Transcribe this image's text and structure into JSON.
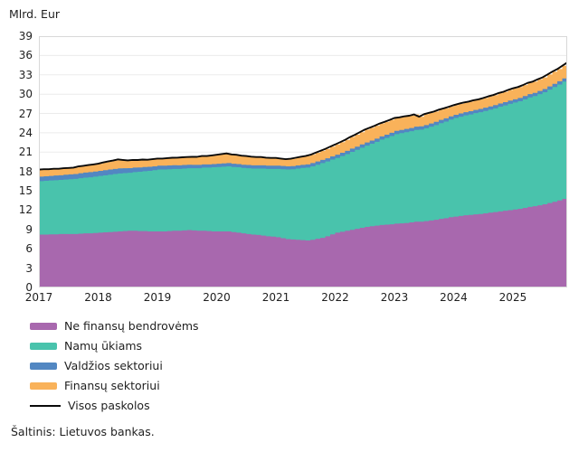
{
  "header": {
    "unit_label": "Mlrd. Eur"
  },
  "source_text": "Šaltinis: Lietuvos bankas.",
  "colors": {
    "purple": "#a868ae",
    "teal": "#49c3ac",
    "blue": "#5287c2",
    "orange": "#f9b25a",
    "line": "#0a0a0a",
    "grid": "#ebebeb",
    "border": "#d8d8d8",
    "text": "#1f1f1f"
  },
  "chart_data": {
    "type": "area",
    "stacked": true,
    "frequency": "monthly",
    "title": "",
    "ylabel": "Mlrd. Eur",
    "xlabel": "",
    "ylim": [
      0,
      39
    ],
    "y_ticks": [
      0,
      3,
      6,
      9,
      12,
      15,
      18,
      21,
      24,
      27,
      30,
      33,
      36,
      39
    ],
    "x_tick_labels": [
      "2017",
      "2018",
      "2019",
      "2020",
      "2021",
      "2022",
      "2023",
      "2024",
      "2025"
    ],
    "x_range": "2017-01 to 2025-12",
    "grid": "horizontal",
    "legend_position": "bottom-left",
    "series": [
      {
        "name": "Ne finansų bendrovėms",
        "color_key": "purple",
        "values": [
          8.2,
          8.2,
          8.25,
          8.25,
          8.3,
          8.3,
          8.3,
          8.3,
          8.35,
          8.4,
          8.4,
          8.45,
          8.5,
          8.55,
          8.6,
          8.65,
          8.7,
          8.75,
          8.8,
          8.8,
          8.75,
          8.75,
          8.7,
          8.7,
          8.7,
          8.7,
          8.75,
          8.8,
          8.8,
          8.85,
          8.9,
          8.85,
          8.8,
          8.8,
          8.75,
          8.7,
          8.7,
          8.7,
          8.7,
          8.6,
          8.5,
          8.4,
          8.3,
          8.2,
          8.15,
          8.05,
          7.95,
          7.9,
          7.8,
          7.65,
          7.5,
          7.45,
          7.4,
          7.35,
          7.3,
          7.4,
          7.55,
          7.7,
          7.95,
          8.25,
          8.5,
          8.65,
          8.8,
          8.95,
          9.1,
          9.25,
          9.4,
          9.5,
          9.6,
          9.7,
          9.75,
          9.8,
          9.9,
          9.95,
          10.0,
          10.1,
          10.2,
          10.2,
          10.3,
          10.4,
          10.5,
          10.65,
          10.75,
          10.9,
          11.0,
          11.1,
          11.2,
          11.25,
          11.35,
          11.4,
          11.5,
          11.6,
          11.7,
          11.8,
          11.9,
          12.0,
          12.1,
          12.2,
          12.35,
          12.5,
          12.6,
          12.75,
          12.9,
          13.1,
          13.3,
          13.5,
          13.75,
          14.0
        ]
      },
      {
        "name": "Namų ūkiams",
        "color_key": "teal",
        "values": [
          8.3,
          8.35,
          8.35,
          8.4,
          8.4,
          8.45,
          8.5,
          8.55,
          8.6,
          8.65,
          8.7,
          8.75,
          8.8,
          8.85,
          8.9,
          8.95,
          9.0,
          9.0,
          9.0,
          9.1,
          9.2,
          9.3,
          9.4,
          9.5,
          9.6,
          9.6,
          9.6,
          9.6,
          9.6,
          9.6,
          9.6,
          9.65,
          9.7,
          9.8,
          9.85,
          9.95,
          10.0,
          10.05,
          10.1,
          10.1,
          10.15,
          10.15,
          10.2,
          10.25,
          10.3,
          10.4,
          10.45,
          10.5,
          10.6,
          10.7,
          10.8,
          10.9,
          11.05,
          11.2,
          11.3,
          11.4,
          11.5,
          11.6,
          11.6,
          11.6,
          11.6,
          11.75,
          11.9,
          12.1,
          12.25,
          12.45,
          12.6,
          12.8,
          13.0,
          13.25,
          13.45,
          13.7,
          13.9,
          14.0,
          14.1,
          14.15,
          14.25,
          14.3,
          14.4,
          14.55,
          14.7,
          14.85,
          15.0,
          15.15,
          15.3,
          15.4,
          15.5,
          15.6,
          15.7,
          15.8,
          15.9,
          16.0,
          16.1,
          16.25,
          16.35,
          16.5,
          16.6,
          16.7,
          16.85,
          17.0,
          17.1,
          17.25,
          17.4,
          17.6,
          17.8,
          18.0,
          18.2,
          18.4
        ]
      },
      {
        "name": "Valdžios sektoriui",
        "color_key": "blue",
        "values": [
          0.7,
          0.7,
          0.7,
          0.72,
          0.72,
          0.75,
          0.75,
          0.75,
          0.78,
          0.78,
          0.8,
          0.8,
          0.8,
          0.8,
          0.8,
          0.8,
          0.78,
          0.75,
          0.72,
          0.7,
          0.68,
          0.65,
          0.62,
          0.6,
          0.6,
          0.6,
          0.58,
          0.58,
          0.55,
          0.55,
          0.55,
          0.52,
          0.52,
          0.5,
          0.5,
          0.5,
          0.5,
          0.5,
          0.5,
          0.5,
          0.5,
          0.5,
          0.5,
          0.5,
          0.5,
          0.5,
          0.5,
          0.5,
          0.5,
          0.5,
          0.5,
          0.48,
          0.48,
          0.48,
          0.5,
          0.5,
          0.5,
          0.5,
          0.5,
          0.5,
          0.5,
          0.5,
          0.5,
          0.5,
          0.5,
          0.5,
          0.5,
          0.5,
          0.5,
          0.5,
          0.5,
          0.5,
          0.5,
          0.5,
          0.5,
          0.5,
          0.5,
          0.5,
          0.5,
          0.5,
          0.5,
          0.5,
          0.5,
          0.5,
          0.5,
          0.5,
          0.5,
          0.5,
          0.5,
          0.5,
          0.5,
          0.5,
          0.5,
          0.5,
          0.5,
          0.5,
          0.5,
          0.5,
          0.5,
          0.5,
          0.5,
          0.5,
          0.5,
          0.5,
          0.5,
          0.5,
          0.5,
          0.5
        ]
      },
      {
        "name": "Finansų sektoriui",
        "color_key": "orange",
        "values": [
          1.1,
          1.1,
          1.05,
          1.05,
          1.0,
          1.0,
          1.0,
          1.0,
          1.05,
          1.05,
          1.1,
          1.1,
          1.1,
          1.2,
          1.25,
          1.3,
          1.4,
          1.3,
          1.2,
          1.2,
          1.15,
          1.15,
          1.1,
          1.1,
          1.1,
          1.1,
          1.15,
          1.15,
          1.2,
          1.2,
          1.2,
          1.25,
          1.25,
          1.3,
          1.3,
          1.35,
          1.4,
          1.45,
          1.5,
          1.45,
          1.45,
          1.4,
          1.4,
          1.35,
          1.3,
          1.3,
          1.25,
          1.2,
          1.2,
          1.15,
          1.1,
          1.15,
          1.2,
          1.25,
          1.3,
          1.3,
          1.35,
          1.4,
          1.45,
          1.5,
          1.6,
          1.65,
          1.7,
          1.8,
          1.85,
          1.9,
          2.0,
          2.0,
          2.0,
          2.0,
          2.0,
          2.0,
          2.0,
          1.95,
          1.95,
          1.9,
          1.9,
          1.5,
          1.7,
          1.65,
          1.6,
          1.6,
          1.55,
          1.5,
          1.5,
          1.5,
          1.5,
          1.5,
          1.5,
          1.5,
          1.5,
          1.55,
          1.55,
          1.6,
          1.6,
          1.65,
          1.7,
          1.7,
          1.7,
          1.75,
          1.75,
          1.8,
          1.8,
          1.85,
          1.9,
          1.9,
          1.95,
          2.0
        ]
      }
    ],
    "total_series": {
      "name": "Visos paskolos",
      "type": "line",
      "color_key": "line",
      "derived": "sum of stacked series"
    }
  },
  "legend": {
    "items": [
      {
        "swatch": "purple",
        "shape": "area"
      },
      {
        "swatch": "teal",
        "shape": "area"
      },
      {
        "swatch": "blue",
        "shape": "area"
      },
      {
        "swatch": "orange",
        "shape": "area"
      },
      {
        "swatch": "line",
        "shape": "line"
      }
    ]
  }
}
